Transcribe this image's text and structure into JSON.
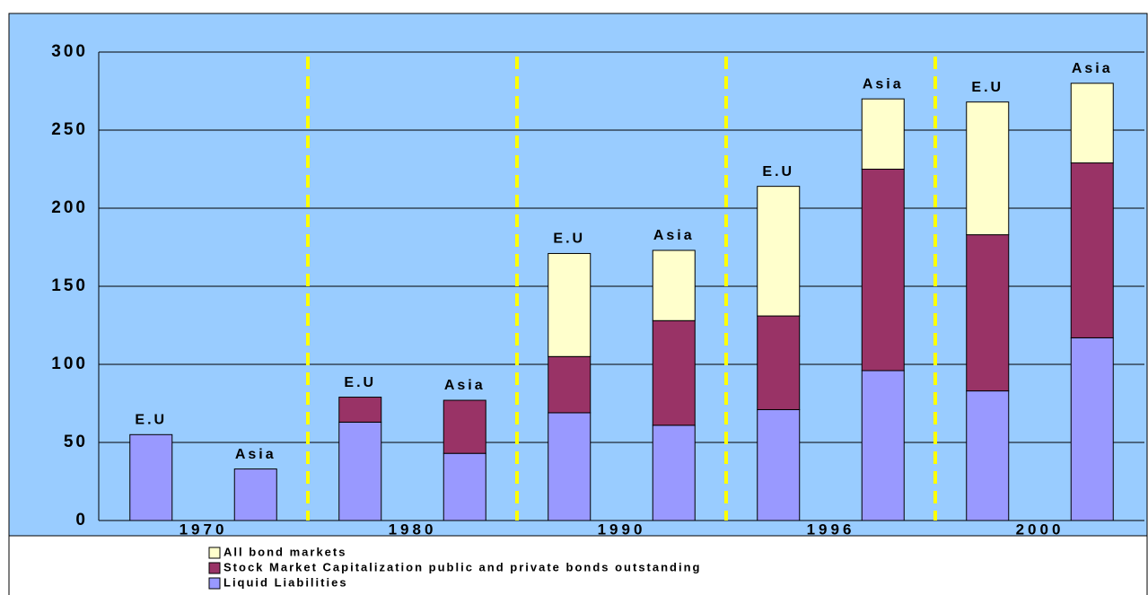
{
  "chart_data": {
    "type": "stacked-bar",
    "categories": [
      "E.U",
      "Asia",
      "E.U",
      "Asia",
      "E.U",
      "Asia",
      "E.U",
      "Asia",
      "E.U",
      "Asia"
    ],
    "groups": [
      "1970",
      "1980",
      "1990",
      "1996",
      "2000"
    ],
    "series": [
      {
        "name": "Liquid Liabilities",
        "color": "#9999ff",
        "values": [
          55,
          33,
          63,
          43,
          69,
          61,
          71,
          96,
          83,
          117
        ]
      },
      {
        "name": "Stock Market Capitalization public and private bonds outstanding",
        "color": "#993366",
        "values": [
          0,
          0,
          16,
          34,
          36,
          67,
          60,
          129,
          100,
          112
        ]
      },
      {
        "name": "All bond markets",
        "color": "#ffffcc",
        "values": [
          0,
          0,
          0,
          0,
          66,
          45,
          83,
          45,
          85,
          51
        ]
      }
    ],
    "ylim": [
      0,
      300
    ],
    "yticks": [
      0,
      50,
      100,
      150,
      200,
      250,
      300
    ],
    "grid": true
  }
}
